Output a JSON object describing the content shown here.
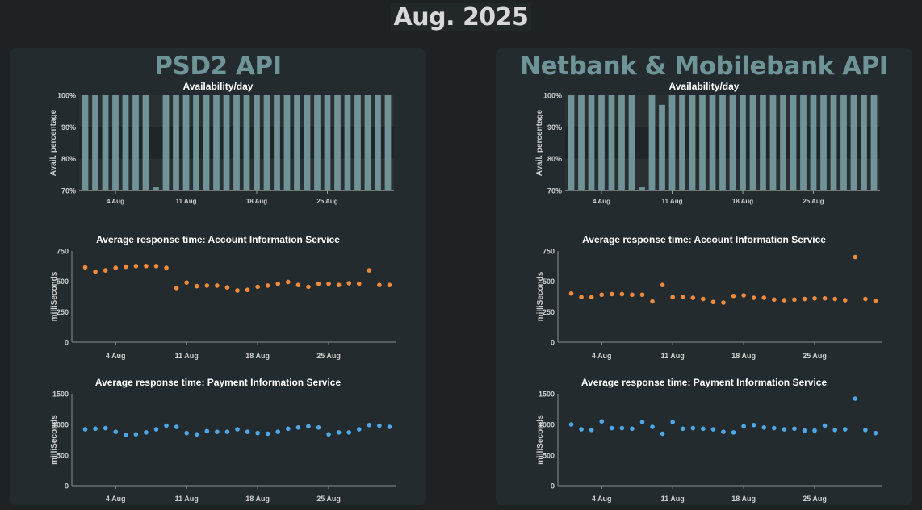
{
  "page": {
    "title": "Aug. 2025"
  },
  "colors": {
    "availability_bar": "#6f9397",
    "ais_point": "#f08a3c",
    "pis_point": "#4ea7e6",
    "panel_title": "#6f9498"
  },
  "panels": [
    {
      "id": "psd2",
      "title": "PSD2 API",
      "charts": [
        {
          "type": "bar",
          "title": "Availability/day",
          "ylabel": "Avail. percentage",
          "ylim": [
            70,
            100
          ],
          "yticks": [
            70,
            80,
            90,
            100
          ],
          "ytick_labels": [
            "70%",
            "80%",
            "90%",
            "100%"
          ],
          "xlim": [
            1,
            31
          ],
          "xticks": [
            4,
            11,
            18,
            25
          ],
          "xtick_labels": [
            "4 Aug",
            "11 Aug",
            "18 Aug",
            "25 Aug"
          ],
          "x": [
            1,
            2,
            3,
            4,
            5,
            6,
            7,
            8,
            9,
            10,
            11,
            12,
            13,
            14,
            15,
            16,
            17,
            18,
            19,
            20,
            21,
            22,
            23,
            24,
            25,
            26,
            27,
            28,
            29,
            30,
            31
          ],
          "values": [
            100,
            100,
            100,
            100,
            100,
            100,
            100,
            71,
            100,
            100,
            100,
            100,
            100,
            100,
            100,
            100,
            100,
            100,
            100,
            100,
            100,
            100,
            100,
            100,
            100,
            100,
            100,
            100,
            100,
            100,
            100
          ]
        },
        {
          "type": "scatter",
          "title": "Average response time: Account Information Service",
          "ylabel": "milliSeconds",
          "ylim": [
            0,
            750
          ],
          "yticks": [
            0,
            250,
            500,
            750
          ],
          "ytick_labels": [
            "0",
            "250",
            "500",
            "750"
          ],
          "xlim": [
            1,
            31
          ],
          "xticks": [
            4,
            11,
            18,
            25
          ],
          "xtick_labels": [
            "4 Aug",
            "11 Aug",
            "18 Aug",
            "25 Aug"
          ],
          "x": [
            1,
            2,
            3,
            4,
            5,
            6,
            7,
            8,
            9,
            10,
            11,
            12,
            13,
            14,
            15,
            16,
            17,
            18,
            19,
            20,
            21,
            22,
            23,
            24,
            25,
            26,
            27,
            28,
            29,
            30,
            31
          ],
          "values": [
            615,
            580,
            590,
            610,
            620,
            625,
            625,
            625,
            610,
            445,
            490,
            460,
            465,
            465,
            450,
            425,
            430,
            455,
            465,
            480,
            495,
            470,
            455,
            480,
            480,
            470,
            485,
            480,
            590,
            470,
            470
          ]
        },
        {
          "type": "scatter",
          "title": "Average response time: Payment Information Service",
          "ylabel": "milliSeconds",
          "ylim": [
            0,
            1500
          ],
          "yticks": [
            0,
            500,
            1000,
            1500
          ],
          "ytick_labels": [
            "0",
            "500",
            "1000",
            "1500"
          ],
          "xlim": [
            1,
            31
          ],
          "xticks": [
            4,
            11,
            18,
            25
          ],
          "xtick_labels": [
            "4 Aug",
            "11 Aug",
            "18 Aug",
            "25 Aug"
          ],
          "x": [
            1,
            2,
            3,
            4,
            5,
            6,
            7,
            8,
            9,
            10,
            11,
            12,
            13,
            14,
            15,
            16,
            17,
            18,
            19,
            20,
            21,
            22,
            23,
            24,
            25,
            26,
            27,
            28,
            29,
            30,
            31
          ],
          "values": [
            920,
            930,
            940,
            880,
            830,
            840,
            870,
            920,
            980,
            960,
            860,
            840,
            890,
            880,
            880,
            920,
            880,
            860,
            850,
            880,
            930,
            950,
            970,
            950,
            840,
            870,
            870,
            920,
            990,
            980,
            960
          ]
        }
      ]
    },
    {
      "id": "netbank",
      "title": "Netbank & Mobilebank API",
      "charts": [
        {
          "type": "bar",
          "title": "Availability/day",
          "ylabel": "Avail. percentage",
          "ylim": [
            70,
            100
          ],
          "yticks": [
            70,
            80,
            90,
            100
          ],
          "ytick_labels": [
            "70%",
            "80%",
            "90%",
            "100%"
          ],
          "xlim": [
            1,
            31
          ],
          "xticks": [
            4,
            11,
            18,
            25
          ],
          "xtick_labels": [
            "4 Aug",
            "11 Aug",
            "18 Aug",
            "25 Aug"
          ],
          "x": [
            1,
            2,
            3,
            4,
            5,
            6,
            7,
            8,
            9,
            10,
            11,
            12,
            13,
            14,
            15,
            16,
            17,
            18,
            19,
            20,
            21,
            22,
            23,
            24,
            25,
            26,
            27,
            28,
            29,
            30,
            31
          ],
          "values": [
            100,
            100,
            100,
            100,
            100,
            100,
            100,
            71,
            100,
            97,
            100,
            100,
            100,
            100,
            100,
            100,
            100,
            100,
            100,
            100,
            100,
            100,
            100,
            100,
            100,
            100,
            100,
            100,
            100,
            100,
            100
          ]
        },
        {
          "type": "scatter",
          "title": "Average response time: Account Information Service",
          "ylabel": "milliSeconds",
          "ylim": [
            0,
            750
          ],
          "yticks": [
            0,
            250,
            500,
            750
          ],
          "ytick_labels": [
            "0",
            "250",
            "500",
            "750"
          ],
          "xlim": [
            1,
            31
          ],
          "xticks": [
            4,
            11,
            18,
            25
          ],
          "xtick_labels": [
            "4 Aug",
            "11 Aug",
            "18 Aug",
            "25 Aug"
          ],
          "x": [
            1,
            2,
            3,
            4,
            5,
            6,
            7,
            8,
            9,
            10,
            11,
            12,
            13,
            14,
            15,
            16,
            17,
            18,
            19,
            20,
            21,
            22,
            23,
            24,
            25,
            26,
            27,
            28,
            29,
            30,
            31
          ],
          "values": [
            400,
            370,
            370,
            390,
            395,
            395,
            390,
            390,
            335,
            470,
            370,
            370,
            365,
            355,
            330,
            325,
            380,
            385,
            365,
            365,
            350,
            345,
            350,
            355,
            360,
            360,
            355,
            345,
            700,
            355,
            340
          ]
        },
        {
          "type": "scatter",
          "title": "Average response time: Payment Information Service",
          "ylabel": "milliSeconds",
          "ylim": [
            0,
            1500
          ],
          "yticks": [
            0,
            500,
            1000,
            1500
          ],
          "ytick_labels": [
            "0",
            "500",
            "1000",
            "1500"
          ],
          "xlim": [
            1,
            31
          ],
          "xticks": [
            4,
            11,
            18,
            25
          ],
          "xtick_labels": [
            "4 Aug",
            "11 Aug",
            "18 Aug",
            "25 Aug"
          ],
          "x": [
            1,
            2,
            3,
            4,
            5,
            6,
            7,
            8,
            9,
            10,
            11,
            12,
            13,
            14,
            15,
            16,
            17,
            18,
            19,
            20,
            21,
            22,
            23,
            24,
            25,
            26,
            27,
            28,
            29,
            30,
            31
          ],
          "values": [
            1000,
            920,
            910,
            1050,
            940,
            940,
            930,
            1040,
            960,
            850,
            1040,
            930,
            940,
            930,
            920,
            880,
            870,
            970,
            990,
            950,
            940,
            920,
            930,
            900,
            900,
            980,
            910,
            920,
            1420,
            910,
            860
          ]
        }
      ]
    }
  ]
}
